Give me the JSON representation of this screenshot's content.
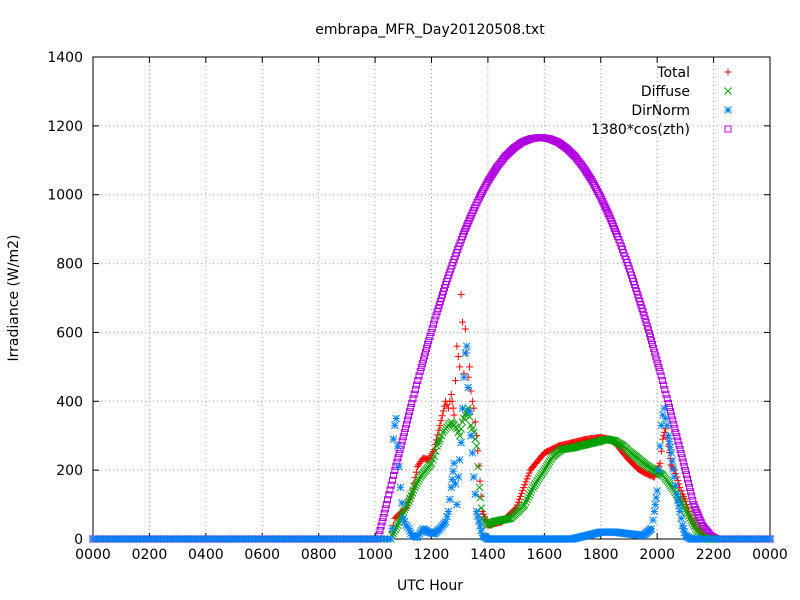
{
  "chart_data": {
    "type": "scatter",
    "title": "embrapa_MFR_Day20120508.txt",
    "xlabel": "UTC Hour",
    "ylabel": "Irradiance (W/m2)",
    "xlim": [
      0,
      24
    ],
    "ylim": [
      0,
      1400
    ],
    "x_ticks": [
      {
        "value": 0,
        "label": "0000"
      },
      {
        "value": 2,
        "label": "0200"
      },
      {
        "value": 4,
        "label": "0400"
      },
      {
        "value": 6,
        "label": "0600"
      },
      {
        "value": 8,
        "label": "0800"
      },
      {
        "value": 10,
        "label": "1000"
      },
      {
        "value": 12,
        "label": "1200"
      },
      {
        "value": 14,
        "label": "1400"
      },
      {
        "value": 16,
        "label": "1600"
      },
      {
        "value": 18,
        "label": "1800"
      },
      {
        "value": 20,
        "label": "2000"
      },
      {
        "value": 22,
        "label": "2200"
      },
      {
        "value": 24,
        "label": "0000"
      }
    ],
    "y_ticks": [
      0,
      200,
      400,
      600,
      800,
      1000,
      1200,
      1400
    ],
    "grid": true,
    "legend_position": "top-right",
    "series": [
      {
        "name": "Total",
        "marker": "plus",
        "color": "#ff0000",
        "x": [
          10.6,
          10.7,
          10.9,
          11.1,
          11.3,
          11.5,
          11.7,
          11.9,
          12.1,
          12.3,
          12.5,
          12.6,
          12.7,
          12.8,
          12.9,
          13.0,
          13.05,
          13.1,
          13.15,
          13.2,
          13.25,
          13.3,
          13.35,
          13.4,
          13.45,
          13.5,
          13.6,
          13.8,
          14.0,
          14.5,
          15.0,
          15.5,
          16.0,
          16.5,
          17.0,
          17.5,
          18.0,
          18.3,
          18.5,
          18.7,
          19.0,
          19.3,
          19.6,
          19.9,
          20.1,
          20.2,
          20.3,
          20.4,
          20.5,
          20.6,
          20.7,
          20.8,
          20.9,
          21.0,
          21.2,
          21.4,
          21.6,
          21.8,
          22.0
        ],
        "y": [
          20,
          60,
          75,
          90,
          130,
          210,
          235,
          230,
          260,
          330,
          400,
          380,
          420,
          360,
          560,
          500,
          710,
          630,
          480,
          610,
          540,
          470,
          500,
          430,
          400,
          380,
          300,
          80,
          40,
          50,
          90,
          200,
          250,
          270,
          280,
          290,
          295,
          290,
          280,
          260,
          230,
          205,
          190,
          180,
          220,
          290,
          320,
          270,
          215,
          200,
          180,
          150,
          130,
          110,
          60,
          30,
          10,
          0,
          0
        ]
      },
      {
        "name": "Diffuse",
        "marker": "cross",
        "color": "#00a000",
        "x": [
          10.6,
          10.8,
          11.0,
          11.2,
          11.4,
          11.6,
          11.8,
          12.0,
          12.1,
          12.2,
          12.3,
          12.4,
          12.5,
          12.6,
          12.7,
          12.8,
          12.9,
          13.0,
          13.1,
          13.2,
          13.3,
          13.4,
          13.5,
          13.6,
          13.7,
          13.8,
          14.0,
          14.2,
          14.5,
          14.8,
          15.0,
          15.3,
          15.6,
          16.0,
          16.3,
          16.6,
          17.0,
          17.5,
          18.0,
          18.2,
          18.5,
          18.8,
          19.0,
          19.3,
          19.6,
          19.9,
          20.2,
          20.4,
          20.6,
          20.8,
          21.0,
          21.2,
          21.4,
          21.6,
          21.8,
          22.0
        ],
        "y": [
          10,
          40,
          80,
          110,
          150,
          180,
          200,
          220,
          240,
          270,
          290,
          310,
          320,
          330,
          340,
          330,
          320,
          300,
          340,
          360,
          380,
          330,
          310,
          270,
          150,
          60,
          40,
          50,
          55,
          60,
          75,
          100,
          150,
          200,
          240,
          260,
          265,
          275,
          285,
          290,
          285,
          270,
          255,
          235,
          215,
          200,
          185,
          165,
          140,
          115,
          85,
          55,
          25,
          5,
          0,
          0
        ]
      },
      {
        "name": "DirNorm",
        "marker": "star",
        "color": "#0080ff",
        "x": [
          10.6,
          10.65,
          10.7,
          10.75,
          10.8,
          10.9,
          11.0,
          11.1,
          11.2,
          11.3,
          11.5,
          11.7,
          11.9,
          12.1,
          12.3,
          12.5,
          12.6,
          12.7,
          12.8,
          12.9,
          12.95,
          13.0,
          13.05,
          13.1,
          13.15,
          13.2,
          13.25,
          13.3,
          13.35,
          13.4,
          13.45,
          13.5,
          13.6,
          13.8,
          14.0,
          15.0,
          16.0,
          17.0,
          18.0,
          18.5,
          19.0,
          19.5,
          19.8,
          19.9,
          20.0,
          20.05,
          20.1,
          20.15,
          20.2,
          20.25,
          20.3,
          20.35,
          20.4,
          20.5,
          20.6,
          20.7,
          20.8,
          20.9,
          21.0,
          21.2,
          21.5
        ],
        "y": [
          30,
          290,
          330,
          350,
          270,
          150,
          60,
          40,
          30,
          10,
          5,
          30,
          20,
          15,
          30,
          50,
          80,
          150,
          220,
          100,
          180,
          230,
          280,
          380,
          470,
          540,
          560,
          440,
          370,
          300,
          250,
          180,
          80,
          10,
          0,
          0,
          0,
          0,
          20,
          20,
          15,
          10,
          30,
          80,
          140,
          200,
          270,
          330,
          360,
          380,
          350,
          330,
          300,
          250,
          180,
          130,
          80,
          40,
          10,
          0,
          0
        ]
      },
      {
        "name": "1380*cos(zth)",
        "marker": "square",
        "color": "#b000e0",
        "x": [
          10.1,
          10.4,
          10.7,
          11.0,
          11.3,
          11.6,
          11.9,
          12.2,
          12.5,
          12.8,
          13.1,
          13.4,
          13.7,
          14.0,
          14.3,
          14.6,
          14.9,
          15.2,
          15.5,
          15.8,
          16.0,
          16.2,
          16.5,
          16.8,
          17.1,
          17.4,
          17.7,
          18.0,
          18.3,
          18.6,
          18.9,
          19.2,
          19.5,
          19.8,
          20.1,
          20.4,
          20.7,
          21.0,
          21.3,
          21.6,
          21.9,
          22.1
        ],
        "y": [
          0,
          100,
          199,
          297,
          394,
          487,
          576,
          660,
          739,
          812,
          879,
          939,
          993,
          1039,
          1078,
          1110,
          1134,
          1152,
          1162,
          1166,
          1165,
          1162,
          1152,
          1134,
          1110,
          1078,
          1039,
          993,
          939,
          879,
          812,
          739,
          660,
          576,
          487,
          394,
          297,
          199,
          100,
          40,
          10,
          0
        ]
      }
    ]
  }
}
